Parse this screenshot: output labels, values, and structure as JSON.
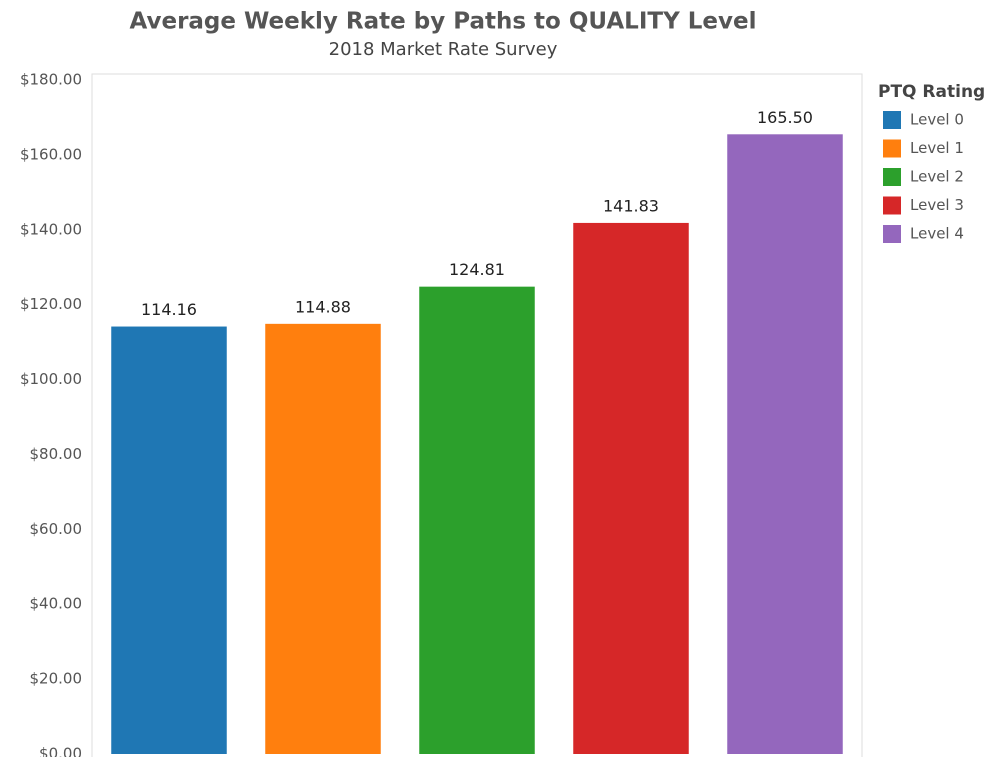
{
  "chart_data": {
    "type": "bar",
    "title": "Average Weekly Rate by Paths to QUALITY Level",
    "subtitle": "2018 Market Rate Survey",
    "legend_title": "PTQ Rating",
    "legend": "right",
    "categories": [
      "Level 0",
      "Level 1",
      "Level 2",
      "Level 3",
      "Level 4"
    ],
    "values": [
      114.16,
      114.88,
      124.81,
      141.83,
      165.5
    ],
    "value_labels": [
      "114.16",
      "114.88",
      "124.81",
      "141.83",
      "165.50"
    ],
    "colors": [
      "#1f77b4",
      "#ff7f0e",
      "#2ca02c",
      "#d62728",
      "#9467bd"
    ],
    "ylim": [
      0,
      180
    ],
    "yticks": [
      {
        "value": 0,
        "label": "$0.00"
      },
      {
        "value": 20,
        "label": "$20.00"
      },
      {
        "value": 40,
        "label": "$40.00"
      },
      {
        "value": 60,
        "label": "$60.00"
      },
      {
        "value": 80,
        "label": "$80.00"
      },
      {
        "value": 100,
        "label": "$100.00"
      },
      {
        "value": 120,
        "label": "$120.00"
      },
      {
        "value": 140,
        "label": "$140.00"
      },
      {
        "value": 160,
        "label": "$160.00"
      },
      {
        "value": 180,
        "label": "$180.00"
      }
    ],
    "grid": false
  }
}
